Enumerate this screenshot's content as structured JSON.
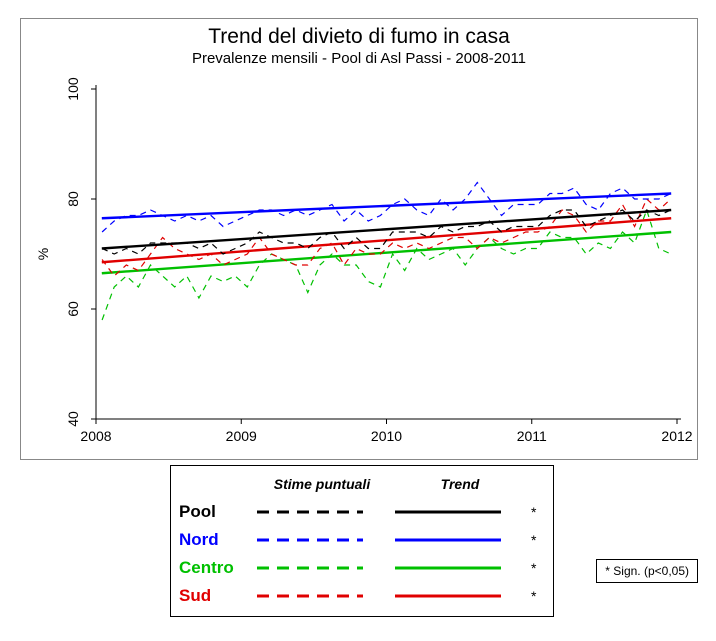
{
  "chart": {
    "type": "line",
    "title": "Trend del divieto di fumo in casa",
    "subtitle": "Prevalenze mensili - Pool di Asl Passi - 2008-2011",
    "ylabel": "%",
    "ylim": [
      40,
      100
    ],
    "yticks": [
      40,
      60,
      80,
      100
    ],
    "xlim": [
      2008,
      2012
    ],
    "xticks": [
      2008,
      2009,
      2010,
      2011,
      2012
    ],
    "title_fontsize": 21,
    "subtitle_fontsize": 15,
    "axis_fontsize": 14,
    "background_color": "#ffffff",
    "panel_border_color": "#888888",
    "axis_line_color": "#000000",
    "dash_line_width": 1.2,
    "trend_line_width": 2.4,
    "series": {
      "pool": {
        "label": "Pool",
        "color": "#000000",
        "significant": true,
        "trend_start": 71.0,
        "trend_end": 78.0,
        "monthly": [
          71,
          70,
          71,
          70,
          72,
          72,
          72,
          72,
          71,
          72,
          70,
          71,
          72,
          74,
          73,
          72,
          72,
          71,
          73,
          74,
          71,
          73,
          71,
          71,
          74,
          74,
          74,
          73,
          75,
          74,
          75,
          75,
          76,
          74,
          75,
          75,
          75,
          77,
          78,
          78,
          75,
          76,
          77,
          78,
          76,
          78,
          77,
          78
        ]
      },
      "nord": {
        "label": "Nord",
        "color": "#0000ff",
        "significant": true,
        "trend_start": 76.5,
        "trend_end": 81.0,
        "monthly": [
          74,
          76,
          77,
          77,
          78,
          77,
          76,
          77,
          76,
          77,
          75,
          76,
          77,
          78,
          78,
          77,
          78,
          77,
          78,
          79,
          76,
          78,
          76,
          77,
          79,
          80,
          78,
          77,
          80,
          78,
          80,
          83,
          80,
          77,
          79,
          79,
          79,
          81,
          81,
          82,
          79,
          78,
          81,
          82,
          80,
          80,
          80,
          81
        ]
      },
      "centro": {
        "label": "Centro",
        "color": "#00c000",
        "significant": true,
        "trend_start": 66.5,
        "trend_end": 74.0,
        "monthly": [
          58,
          64,
          66,
          64,
          68,
          66,
          64,
          66,
          62,
          66,
          65,
          66,
          64,
          68,
          70,
          69,
          68,
          63,
          68,
          70,
          68,
          68,
          65,
          64,
          70,
          67,
          71,
          69,
          70,
          71,
          68,
          71,
          73,
          71,
          70,
          71,
          71,
          74,
          73,
          73,
          70,
          72,
          71,
          74,
          72,
          78,
          71,
          70
        ]
      },
      "sud": {
        "label": "Sud",
        "color": "#e00000",
        "significant": true,
        "trend_start": 68.5,
        "trend_end": 76.5,
        "monthly": [
          69,
          66,
          68,
          67,
          70,
          73,
          71,
          70,
          69,
          70,
          68,
          69,
          70,
          73,
          70,
          69,
          68,
          68,
          71,
          72,
          68,
          71,
          70,
          70,
          72,
          71,
          72,
          71,
          72,
          73,
          73,
          71,
          73,
          72,
          73,
          74,
          74,
          75,
          78,
          77,
          74,
          76,
          76,
          79,
          75,
          80,
          78,
          80
        ]
      }
    }
  },
  "legend": {
    "header_point": "Stime puntuali",
    "header_trend": "Trend",
    "rows": [
      "pool",
      "nord",
      "centro",
      "sud"
    ],
    "name_fontsize": 17,
    "header_fontsize": 14,
    "dash_swatch_width": 3,
    "trend_swatch_width": 3
  },
  "significance_note": "* Sign. (p<0,05)"
}
